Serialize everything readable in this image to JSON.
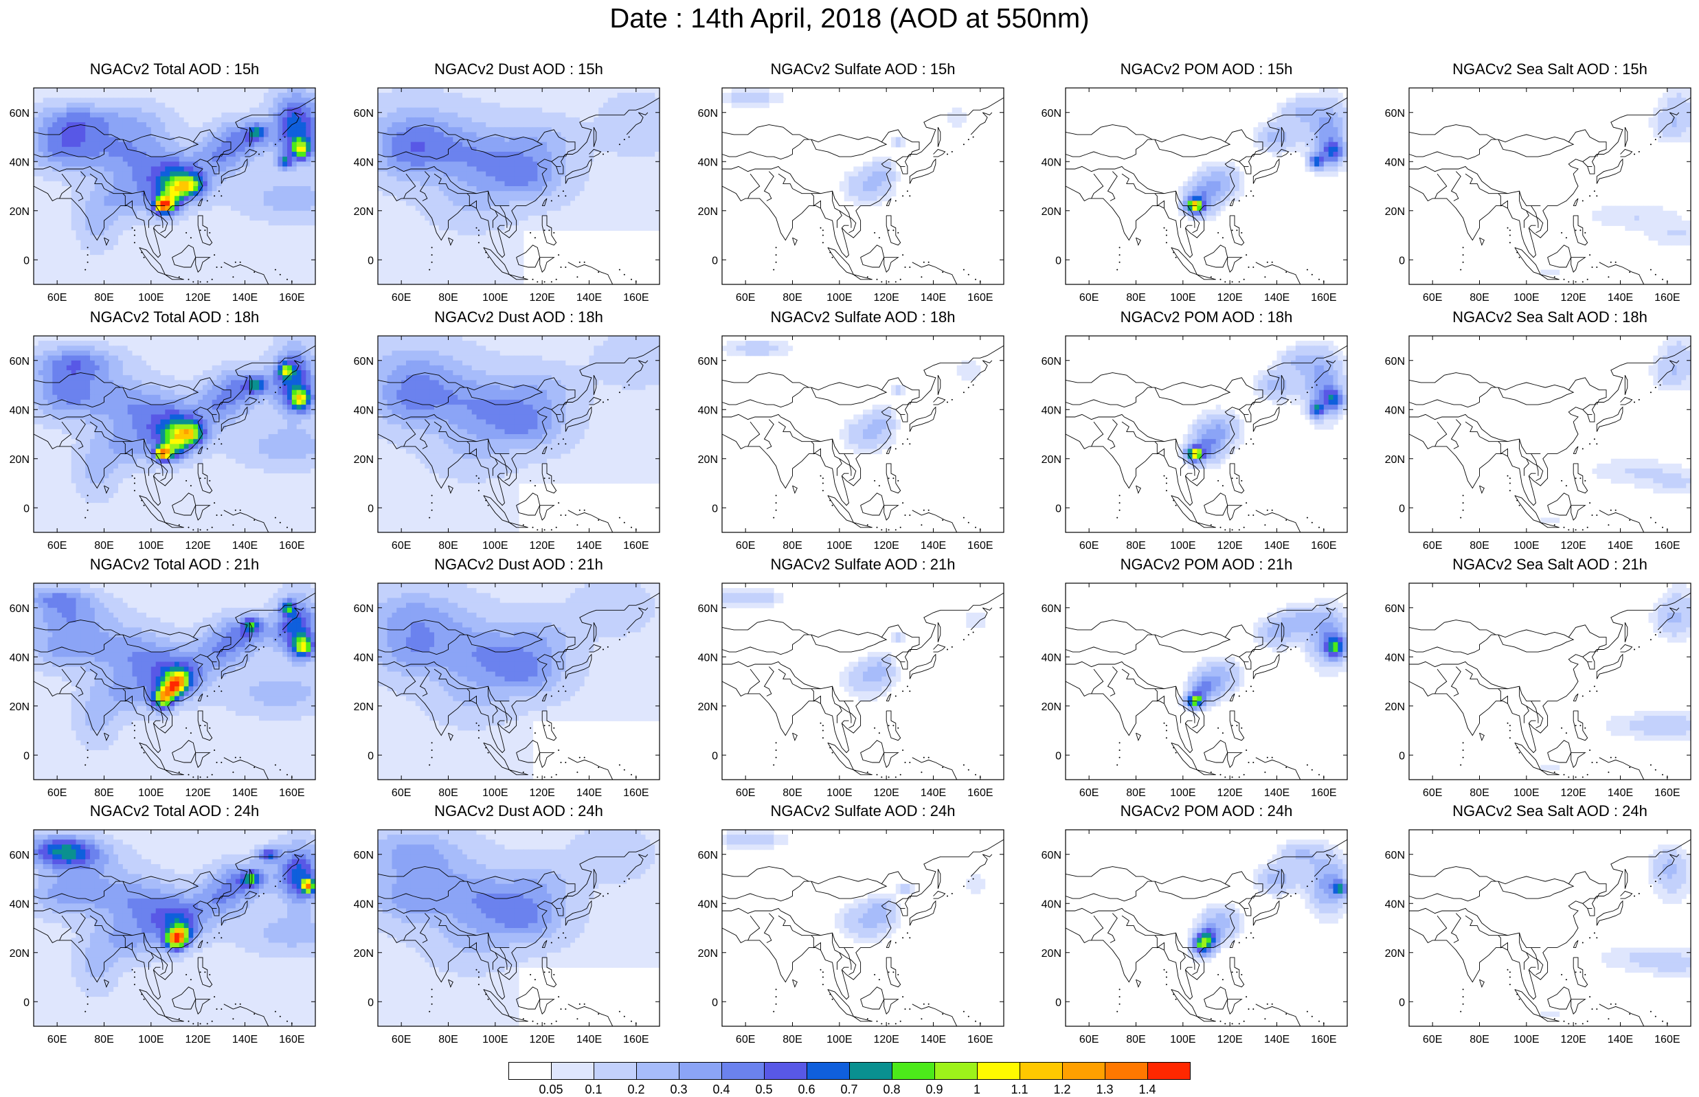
{
  "title": "Date : 14th April, 2018 (AOD at 550nm)",
  "axes": {
    "lon_ticks": [
      "60E",
      "80E",
      "100E",
      "120E",
      "140E",
      "160E"
    ],
    "lat_ticks": [
      "60N",
      "40N",
      "20N",
      "0"
    ],
    "lon_range": [
      50,
      170
    ],
    "lat_range": [
      -10,
      70
    ]
  },
  "colorbar": {
    "labels": [
      "0.05",
      "0.1",
      "0.2",
      "0.3",
      "0.4",
      "0.5",
      "0.6",
      "0.7",
      "0.8",
      "0.9",
      "1",
      "1.1",
      "1.2",
      "1.3",
      "1.4"
    ],
    "colors": [
      "#ffffff",
      "#dfe6fd",
      "#c3d1fc",
      "#a7bcfa",
      "#8ba4f6",
      "#6b82ee",
      "#5858e6",
      "#0f5fdc",
      "#0a9090",
      "#4cea1a",
      "#9df21a",
      "#c8f532",
      "#fffa00",
      "#ffc800",
      "#ffa000",
      "#ff7800",
      "#ff2800"
    ]
  },
  "panels": [
    {
      "title": "NGACv2 Total AOD : 15h",
      "species": "total",
      "hour": "15h"
    },
    {
      "title": "NGACv2 Dust AOD : 15h",
      "species": "dust",
      "hour": "15h"
    },
    {
      "title": "NGACv2 Sulfate AOD : 15h",
      "species": "sulfate",
      "hour": "15h"
    },
    {
      "title": "NGACv2 POM AOD : 15h",
      "species": "pom",
      "hour": "15h"
    },
    {
      "title": "NGACv2 Sea Salt AOD : 15h",
      "species": "seasalt",
      "hour": "15h"
    },
    {
      "title": "NGACv2 Total AOD : 18h",
      "species": "total",
      "hour": "18h"
    },
    {
      "title": "NGACv2 Dust AOD : 18h",
      "species": "dust",
      "hour": "18h"
    },
    {
      "title": "NGACv2 Sulfate AOD : 18h",
      "species": "sulfate",
      "hour": "18h"
    },
    {
      "title": "NGACv2 POM AOD : 18h",
      "species": "pom",
      "hour": "18h"
    },
    {
      "title": "NGACv2 Sea Salt AOD : 18h",
      "species": "seasalt",
      "hour": "18h"
    },
    {
      "title": "NGACv2 Total AOD : 21h",
      "species": "total",
      "hour": "21h"
    },
    {
      "title": "NGACv2 Dust AOD : 21h",
      "species": "dust",
      "hour": "21h"
    },
    {
      "title": "NGACv2 Sulfate AOD : 21h",
      "species": "sulfate",
      "hour": "21h"
    },
    {
      "title": "NGACv2 POM AOD : 21h",
      "species": "pom",
      "hour": "21h"
    },
    {
      "title": "NGACv2 Sea Salt AOD : 21h",
      "species": "seasalt",
      "hour": "21h"
    },
    {
      "title": "NGACv2 Total AOD : 24h",
      "species": "total",
      "hour": "24h"
    },
    {
      "title": "NGACv2 Dust AOD : 24h",
      "species": "dust",
      "hour": "24h"
    },
    {
      "title": "NGACv2 Sulfate AOD : 24h",
      "species": "sulfate",
      "hour": "24h"
    },
    {
      "title": "NGACv2 POM AOD : 24h",
      "species": "pom",
      "hour": "24h"
    },
    {
      "title": "NGACv2 Sea Salt  AOD : 24h",
      "species": "seasalt",
      "hour": "24h"
    }
  ]
}
